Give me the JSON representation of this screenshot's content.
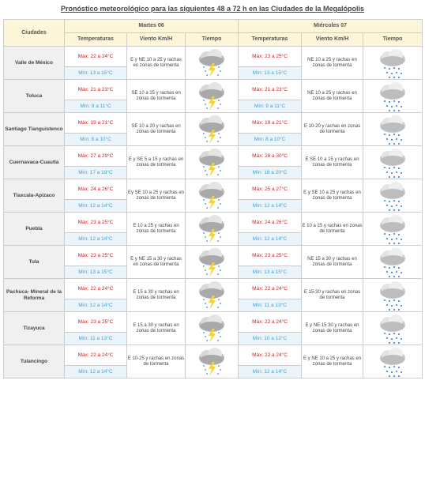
{
  "title": "Pronóstico meteorológico para las siguientes 48 a 72 h en las Ciudades de la Megalópolis",
  "headers": {
    "cities": "Ciudades",
    "day1": "Martes 06",
    "day2": "Miércoles 07",
    "temp": "Temperaturas",
    "wind": "Viento Km/H",
    "weather": "Tiempo"
  },
  "icons": {
    "storm": "storm-cloud-icon",
    "rain": "rain-cloud-icon"
  },
  "colors": {
    "max": "#d12020",
    "min": "#3da0d8",
    "header_bg": "#fdf6d9"
  },
  "rows": [
    {
      "city": "Valle de México",
      "d1max": "Máx: 22 a 24°C",
      "d1min": "Mín: 13 a 15°C",
      "d1wind": "E y NE 10 a 25 y rachas en zonas de tormenta",
      "d2max": "Máx: 23 a 25°C",
      "d2min": "Mín: 13 a 15°C",
      "d2wind": "NE 10 a 25 y rachas en zonas de tormenta"
    },
    {
      "city": "Toluca",
      "d1max": "Máx: 21 a 23°C",
      "d1min": "Mín: 9 a 11°C",
      "d1wind": "SE 10 a 25 y rachas en zonas de tormenta",
      "d2max": "Máx: 21 a 23°C",
      "d2min": "Mín: 9 a 11°C",
      "d2wind": "NE 10 a 25 y rachas en zonas de tormenta"
    },
    {
      "city": "Santiago Tianguistenco",
      "d1max": "Máx: 19 a 21°C",
      "d1min": "Mín: 8 a 10°C",
      "d1wind": "SE 10 a 20 y rachas en zonas de tormenta",
      "d2max": "Máx: 19 a 21°C",
      "d2min": "Mín: 8 a 10°C",
      "d2wind": "E 10-20 y rachas en zonas de tormenta"
    },
    {
      "city": "Cuernavaca-Cuautla",
      "d1max": "Máx: 27 a 29°C",
      "d1min": "Mín: 17 a 19°C",
      "d1wind": "E y SE 5 a 15 y rachas en zonas de tormenta",
      "d2max": "Máx: 28 a 30°C",
      "d2min": "Mín: 18 a 20°C",
      "d2wind": "E SE 10 a 15 y rachas en zonas de tormenta"
    },
    {
      "city": "Tlaxcala-Apizaco",
      "d1max": "Máx: 24 a 26°C",
      "d1min": "Mín: 12 a 14°C",
      "d1wind": "Ey SE 10 a 25 y rachas en zonas de tormenta",
      "d2max": "Máx: 25 a 27°C",
      "d2min": "Mín: 12 a 14°C",
      "d2wind": "E y SE 10 a 25 y rachas en zonas de tormenta"
    },
    {
      "city": "Puebla",
      "d1max": "Máx: 23 a 25°C",
      "d1min": "Mín: 12 a 14°C",
      "d1wind": "E 10 a 25 y rachas en zonas de tormenta",
      "d2max": "Máx: 24 a 26°C",
      "d2min": "Mín: 12 a 14°C",
      "d2wind": "E 10 a 25 y rachas en zonas de tormenta"
    },
    {
      "city": "Tula",
      "d1max": "Máx: 23 a 25°C",
      "d1min": "Mín: 13 a 15°C",
      "d1wind": "E y NE 15 a 30 y rachas en zonas de tormenta",
      "d2max": "Máx: 23 a 25°C",
      "d2min": "Mín: 13 a 15°C",
      "d2wind": "NE 15 a 30 y rachas en zonas de tormenta"
    },
    {
      "city": "Pachuca- Mineral de la Reforma",
      "d1max": "Máx: 22 a 24°C",
      "d1min": "Mín: 12 a 14°C",
      "d1wind": "E 15 a 30 y rachas en zonas de tormenta",
      "d2max": "Máx: 22 a 24°C",
      "d2min": "Mín: 11 a 13°C",
      "d2wind": "E 15-30 y rachas en zonas de tormenta"
    },
    {
      "city": "Tizayuca",
      "d1max": "Máx: 23 a 25°C",
      "d1min": "Mín: 11 a 13°C",
      "d1wind": "E 15 a 30 y rachas en zonas de tormenta",
      "d2max": "Máx: 22 a 24°C",
      "d2min": "Mín: 10 a 12°C",
      "d2wind": "E y NE 15 30 y rachas en zonas de tormenta"
    },
    {
      "city": "Tulancingo",
      "d1max": "Máx: 22 a 24°C",
      "d1min": "Mín: 12 a 14°C",
      "d1wind": "E 10-25 y rachas en zonas de tormenta",
      "d2max": "Máx: 22 a 24°C",
      "d2min": "Mín: 12 a 14°C",
      "d2wind": "E y NE 10 a 25 y rachas en zonas de tormenta"
    }
  ]
}
